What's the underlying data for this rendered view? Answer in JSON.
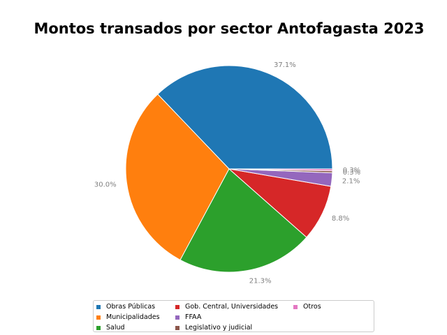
{
  "chart_data": {
    "type": "pie",
    "title": "Montos transados por sector Antofagasta 2023",
    "categories": [
      "Obras Públicas",
      "Municipalidades",
      "Salud",
      "Gob. Central, Universidades",
      "FFAA",
      "Legislativo y judicial",
      "Otros"
    ],
    "values": [
      37.1,
      30.0,
      21.3,
      8.8,
      2.1,
      0.3,
      0.3
    ],
    "labels": [
      "37.1%",
      "30.0%",
      "21.3%",
      "8.8%",
      "2.1%",
      "0.3%",
      "0.3%"
    ],
    "colors": [
      "#1f77b4",
      "#ff7f0e",
      "#2ca02c",
      "#d62728",
      "#9467bd",
      "#8c564b",
      "#e377c2"
    ],
    "start_angle_deg": 0,
    "direction": "counterclockwise",
    "legend_position": "bottom"
  }
}
